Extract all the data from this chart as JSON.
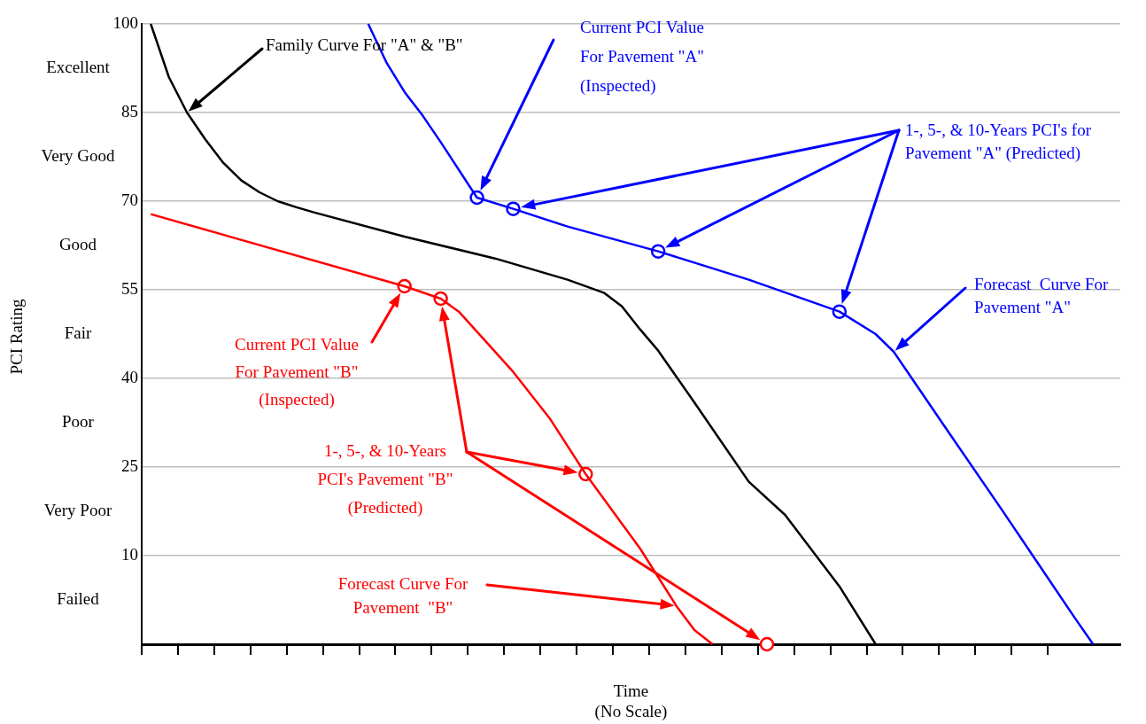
{
  "chart_data": {
    "type": "line",
    "xlabel": "Time\n(No Scale)",
    "categories": [
      null,
      null,
      null,
      null,
      null,
      null,
      null,
      null,
      null,
      null,
      null,
      null,
      null,
      null,
      null,
      null,
      null,
      null,
      null,
      null,
      null,
      null,
      null,
      null,
      null,
      null,
      null,
      null,
      null,
      null,
      null,
      null,
      null,
      null,
      null,
      null,
      null,
      null,
      null,
      null,
      null,
      null,
      null,
      null,
      null,
      null,
      null,
      null,
      null,
      null,
      null,
      null,
      null,
      null
    ],
    "ylim": [
      -5,
      100
    ],
    "yticks": [
      10,
      25,
      40,
      55,
      70,
      85,
      100
    ],
    "tick_labels": "y",
    "grid": "y",
    "legend": false,
    "series": [
      {
        "color": "#000000",
        "marker": "none",
        "values": [
          100,
          91,
          85,
          80.5,
          76.5,
          73.5,
          71.5,
          70,
          69,
          68.1,
          null,
          null,
          null,
          null,
          64,
          null,
          null,
          null,
          null,
          60.3,
          null,
          null,
          null,
          56.7,
          null,
          54.5,
          52.2,
          48.3,
          44.7,
          null,
          35.9,
          null,
          null,
          22.5,
          null,
          16.9,
          null,
          null,
          4.8,
          null,
          -5,
          null,
          null,
          null,
          null,
          null,
          null,
          null,
          null,
          null,
          null,
          null,
          null,
          null
        ]
      },
      {
        "color": "#0000ff",
        "marker": "none",
        "values": [
          null,
          null,
          null,
          null,
          null,
          null,
          null,
          null,
          null,
          null,
          null,
          null,
          100,
          93.5,
          88.5,
          84.5,
          80,
          null,
          70.6,
          null,
          68.7,
          null,
          null,
          65.7,
          null,
          null,
          null,
          null,
          61.5,
          null,
          null,
          null,
          null,
          56.7,
          null,
          null,
          null,
          null,
          51.3,
          null,
          47.5,
          44.5,
          null,
          null,
          31,
          null,
          null,
          17.6,
          null,
          8.5,
          null,
          -0.6,
          -5,
          null
        ]
      },
      {
        "color": "#ff0000",
        "marker": "none",
        "values": [
          67.8,
          null,
          null,
          null,
          null,
          null,
          null,
          null,
          null,
          null,
          null,
          null,
          null,
          null,
          55.6,
          null,
          53.5,
          51.3,
          null,
          null,
          41.1,
          null,
          33.3,
          null,
          23.8,
          null,
          null,
          11.2,
          null,
          1.5,
          -2.6,
          -5,
          null,
          null,
          null,
          null,
          null,
          null,
          null,
          null,
          null,
          null,
          null,
          null,
          null,
          null,
          null,
          null,
          null,
          null,
          null,
          null,
          null,
          null
        ]
      },
      {
        "type": "scatter",
        "color": "#0000ff",
        "marker": "circle",
        "values": [
          null,
          null,
          null,
          null,
          null,
          null,
          null,
          null,
          null,
          null,
          null,
          null,
          null,
          null,
          null,
          null,
          null,
          null,
          70.6,
          null,
          68.7,
          null,
          null,
          null,
          null,
          null,
          null,
          null,
          61.5,
          null,
          null,
          null,
          null,
          null,
          null,
          null,
          null,
          null,
          51.3,
          null,
          null,
          null,
          null,
          null,
          null,
          null,
          null,
          null,
          null,
          null,
          null,
          null,
          null,
          null
        ]
      },
      {
        "type": "scatter",
        "color": "#ff0000",
        "marker": "circle",
        "values": [
          null,
          null,
          null,
          null,
          null,
          null,
          null,
          null,
          null,
          null,
          null,
          null,
          null,
          null,
          55.6,
          null,
          53.5,
          null,
          null,
          null,
          null,
          null,
          null,
          null,
          23.8,
          null,
          null,
          null,
          null,
          null,
          null,
          null,
          null,
          null,
          -5,
          null,
          null,
          null,
          null,
          null,
          null,
          null,
          null,
          null,
          null,
          null,
          null,
          null,
          null,
          null,
          null,
          null,
          null,
          null
        ]
      }
    ],
    "annotations": [
      "Excellent",
      "Very Good",
      "Good",
      "Fair",
      "Poor",
      "Very Poor",
      "Failed",
      "Family Curve For \"A\" & \"B\"",
      "Current PCI Value\nFor Pavement \"A\"\n(Inspected)",
      "1-, 5-, & 10-Years PCI's for\nPavement \"A\" (Predicted)",
      "Forecast  Curve For\nPavement \"A\"",
      "Current PCI Value\nFor Pavement \"B\"\n(Inspected)",
      "1-, 5-, & 10-Years\nPCI's Pavement \"B\"\n(Predicted)",
      "Forecast Curve For\nPavement  \"B\"",
      "PCI Rating"
    ]
  }
}
